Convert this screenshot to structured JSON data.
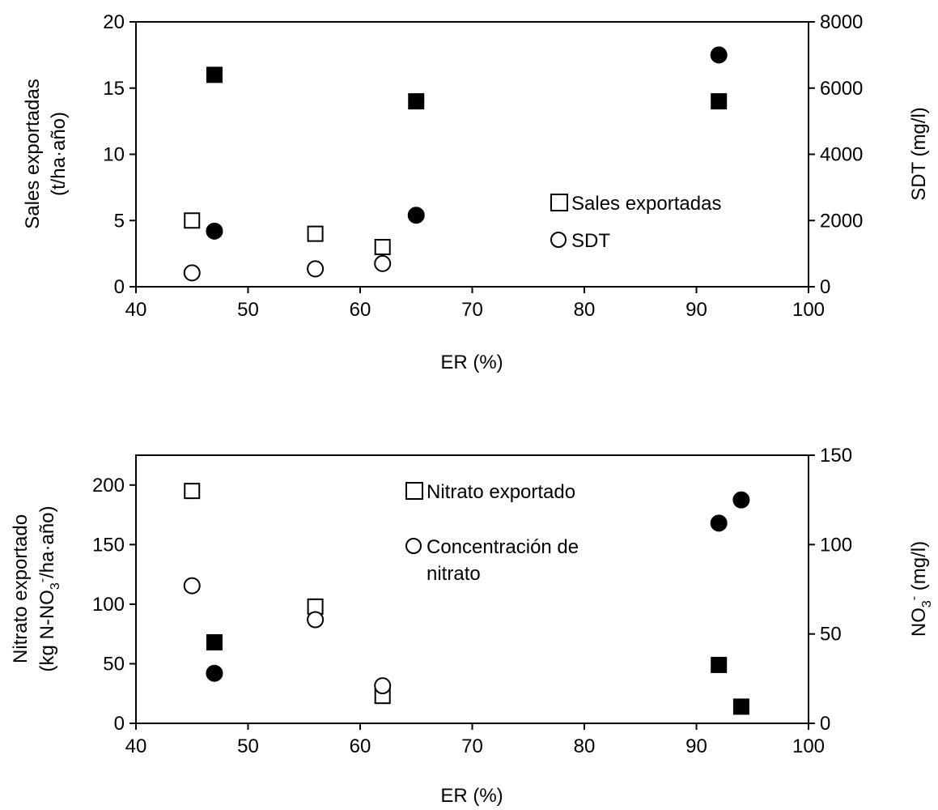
{
  "chart_data": [
    {
      "type": "scatter",
      "title": "",
      "xlabel": "ER (%)",
      "ylabel_lines": [
        "Sales exportadas",
        "(t/ha·año)"
      ],
      "y2label": "SDT (mg/l)",
      "xlim": [
        40,
        100
      ],
      "ylim": [
        0,
        20
      ],
      "y2lim": [
        0,
        8000
      ],
      "xticks": [
        "40",
        "50",
        "60",
        "70",
        "80",
        "90",
        "100"
      ],
      "yticks": [
        "0",
        "5",
        "10",
        "15",
        "20"
      ],
      "y2ticks": [
        "0",
        "2000",
        "4000",
        "6000",
        "8000"
      ],
      "grid": false,
      "legend_position": "center-right",
      "legend": [
        "Sales exportadas",
        "SDT"
      ],
      "series": [
        {
          "name": "Sales exportadas",
          "axis": "left",
          "marker": "square",
          "filled": false,
          "x": [
            45,
            56,
            62
          ],
          "y": [
            5,
            4,
            3
          ]
        },
        {
          "name": "Sales exportadas",
          "axis": "left",
          "marker": "square",
          "filled": true,
          "x": [
            47,
            65,
            92
          ],
          "y": [
            16,
            14,
            14
          ]
        },
        {
          "name": "SDT",
          "axis": "right",
          "marker": "circle",
          "filled": false,
          "x": [
            45,
            56,
            62
          ],
          "y": [
            420,
            540,
            700
          ]
        },
        {
          "name": "SDT",
          "axis": "right",
          "marker": "circle",
          "filled": true,
          "x": [
            47,
            65,
            92
          ],
          "y": [
            1680,
            2160,
            7000
          ]
        }
      ]
    },
    {
      "type": "scatter",
      "title": "",
      "xlabel": "ER (%)",
      "ylabel_lines": [
        "Nitrato exportado",
        "(kg N-NO",
        "3",
        "-",
        "/ha·año)"
      ],
      "y2label_parts": [
        "NO",
        "3",
        "-",
        " (mg/l)"
      ],
      "xlim": [
        40,
        100
      ],
      "ylim": [
        0,
        225
      ],
      "y2lim": [
        0,
        150
      ],
      "xticks": [
        "40",
        "50",
        "60",
        "70",
        "80",
        "90",
        "100"
      ],
      "yticks": [
        "0",
        "50",
        "100",
        "150",
        "200"
      ],
      "y2ticks": [
        "0",
        "50",
        "100",
        "150"
      ],
      "grid": false,
      "legend_position": "top-center",
      "legend": [
        "Nitrato exportado",
        "Concentración de",
        "nitrato"
      ],
      "series": [
        {
          "name": "Nitrato exportado",
          "axis": "left",
          "marker": "square",
          "filled": false,
          "x": [
            45,
            56,
            62
          ],
          "y": [
            195,
            98,
            23
          ]
        },
        {
          "name": "Nitrato exportado",
          "axis": "left",
          "marker": "square",
          "filled": true,
          "x": [
            47,
            92,
            94
          ],
          "y": [
            68,
            49,
            14
          ]
        },
        {
          "name": "Concentración de nitrato",
          "axis": "right",
          "marker": "circle",
          "filled": false,
          "x": [
            45,
            56,
            62
          ],
          "y": [
            77,
            58,
            21
          ]
        },
        {
          "name": "Concentración de nitrato",
          "axis": "right",
          "marker": "circle",
          "filled": true,
          "x": [
            47,
            92,
            94
          ],
          "y": [
            28,
            112,
            125
          ]
        }
      ]
    }
  ]
}
